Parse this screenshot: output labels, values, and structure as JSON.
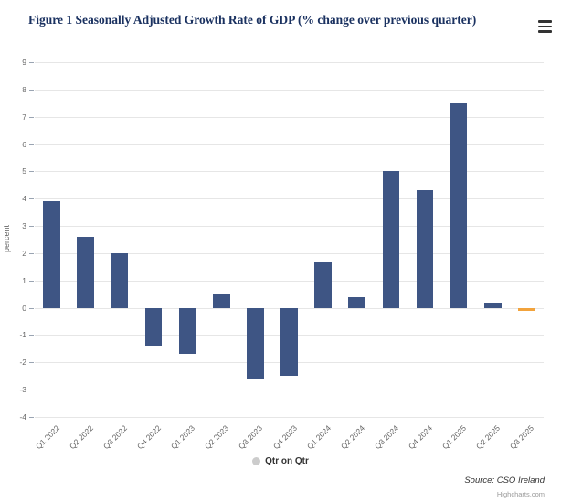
{
  "header": {
    "title": "Figure 1 Seasonally Adjusted Growth Rate of GDP (% change over previous quarter)",
    "menu_icon": "hamburger-icon"
  },
  "chart_data": {
    "type": "bar",
    "title": "Figure 1 Seasonally Adjusted Growth Rate of GDP (% change over previous quarter)",
    "xlabel": "",
    "ylabel": "percent",
    "ylim": [
      -4,
      9
    ],
    "y_tick_step": 1,
    "grid": true,
    "legend_position": "bottom-center",
    "categories": [
      "Q1 2022",
      "Q2 2022",
      "Q3 2022",
      "Q4 2022",
      "Q1 2023",
      "Q2 2023",
      "Q3 2023",
      "Q4 2023",
      "Q1 2024",
      "Q2 2024",
      "Q3 2024",
      "Q4 2024",
      "Q1 2025",
      "Q2 2025",
      "Q3 2025"
    ],
    "series": [
      {
        "name": "Qtr on Qtr",
        "color": "#3e5584",
        "values": [
          3.9,
          2.6,
          2.0,
          -1.4,
          -1.7,
          0.5,
          -2.6,
          -2.5,
          1.7,
          0.4,
          5.0,
          4.3,
          7.5,
          0.2,
          -0.1
        ]
      }
    ],
    "point_colors": [
      null,
      null,
      null,
      null,
      null,
      null,
      null,
      null,
      null,
      null,
      null,
      null,
      null,
      null,
      "#f2a33c"
    ]
  },
  "legend": {
    "label": "Qtr on Qtr",
    "marker_color": "#cccccc"
  },
  "footer": {
    "source": "Source: CSO Ireland",
    "credits": "Highcharts.com"
  },
  "colors": {
    "bar": "#3e5584",
    "highlight": "#f2a33c",
    "title": "#1a3160",
    "grid": "#e6e6e6",
    "axis_text": "#666666"
  }
}
